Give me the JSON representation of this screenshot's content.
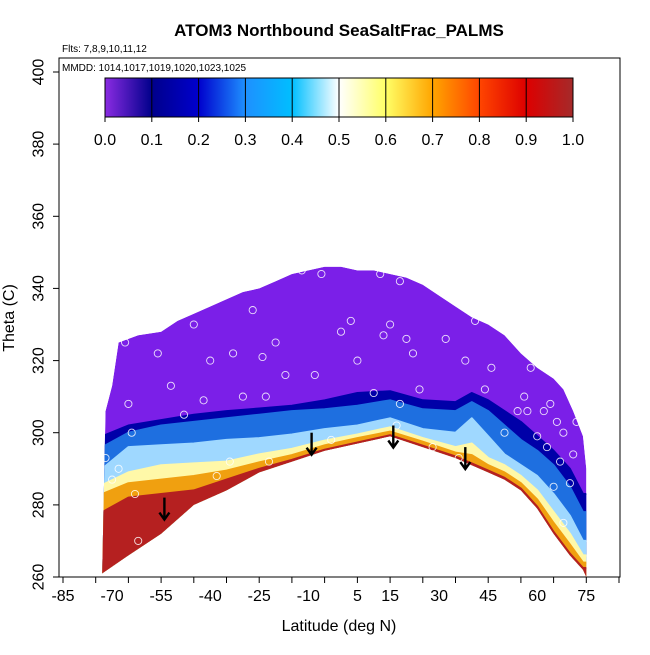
{
  "chart_data": {
    "type": "heatmap",
    "title": "ATOM3 Northbound SeaSaltFrac_PALMS",
    "subtitle_flights": "Flts: 7,8,9,10,11,12",
    "subtitle_dates": "MMDD: 1014,1017,1019,1020,1023,1025",
    "xlabel": "Latitude (deg N)",
    "ylabel": "Theta (C)",
    "xlim": [
      -85,
      85
    ],
    "ylim": [
      260,
      400
    ],
    "xticks": [
      -85,
      -70,
      -55,
      -40,
      -25,
      -10,
      5,
      15,
      30,
      45,
      60,
      75
    ],
    "yticks": [
      260,
      280,
      300,
      320,
      340,
      360,
      380,
      400
    ],
    "colorbar": {
      "range": [
        0.0,
        1.0
      ],
      "ticks": [
        "0.0",
        "0.1",
        "0.2",
        "0.3",
        "0.4",
        "0.5",
        "0.6",
        "0.7",
        "0.8",
        "0.9",
        "1.0"
      ],
      "colors": [
        "#8a2be2",
        "#00008b",
        "#0000cd",
        "#1e90ff",
        "#00bfff",
        "#ffffff",
        "#ffff66",
        "#ffa500",
        "#ff4500",
        "#dd0000",
        "#a52a2a"
      ]
    },
    "upper_boundary": [
      [
        -72,
        306
      ],
      [
        -70,
        313
      ],
      [
        -68,
        325
      ],
      [
        -62,
        327
      ],
      [
        -55,
        328
      ],
      [
        -50,
        331
      ],
      [
        -45,
        333
      ],
      [
        -40,
        335
      ],
      [
        -35,
        337
      ],
      [
        -30,
        339
      ],
      [
        -25,
        340
      ],
      [
        -20,
        342
      ],
      [
        -15,
        344
      ],
      [
        -10,
        345
      ],
      [
        -5,
        346
      ],
      [
        0,
        346
      ],
      [
        5,
        345
      ],
      [
        10,
        345
      ],
      [
        15,
        344
      ],
      [
        20,
        343
      ],
      [
        25,
        341
      ],
      [
        30,
        338
      ],
      [
        35,
        335
      ],
      [
        40,
        332
      ],
      [
        45,
        330
      ],
      [
        50,
        327
      ],
      [
        55,
        322
      ],
      [
        60,
        318
      ],
      [
        65,
        315
      ],
      [
        68,
        312
      ],
      [
        71,
        306
      ],
      [
        74,
        299
      ],
      [
        75,
        290
      ]
    ],
    "lower_boundary": [
      [
        -73,
        261
      ],
      [
        -65,
        266
      ],
      [
        -55,
        272
      ],
      [
        -45,
        280
      ],
      [
        -35,
        284
      ],
      [
        -25,
        289
      ],
      [
        -15,
        292
      ],
      [
        -5,
        295
      ],
      [
        5,
        297
      ],
      [
        15,
        299
      ],
      [
        25,
        296
      ],
      [
        35,
        293
      ],
      [
        40,
        291
      ],
      [
        45,
        289
      ],
      [
        50,
        287
      ],
      [
        55,
        284
      ],
      [
        60,
        279
      ],
      [
        65,
        272
      ],
      [
        70,
        266
      ],
      [
        74,
        262
      ],
      [
        75,
        260
      ]
    ],
    "bands": [
      {
        "value": 0.9,
        "color": "#b52020",
        "stops": [
          [
            -73,
            278
          ],
          [
            -65,
            282
          ],
          [
            -55,
            283
          ],
          [
            -45,
            284
          ],
          [
            -35,
            287
          ],
          [
            -25,
            290
          ],
          [
            -15,
            292.5
          ],
          [
            -5,
            295.3
          ],
          [
            5,
            297.3
          ],
          [
            15,
            299.3
          ],
          [
            25,
            296.4
          ],
          [
            35,
            293.4
          ],
          [
            40,
            291.5
          ],
          [
            45,
            289.5
          ],
          [
            50,
            287.5
          ],
          [
            55,
            284.5
          ],
          [
            60,
            279.5
          ],
          [
            65,
            272.5
          ],
          [
            70,
            266.5
          ],
          [
            74,
            262.5
          ]
        ]
      },
      {
        "value": 0.75,
        "color": "#f0a010",
        "stops": [
          [
            -73,
            283
          ],
          [
            -65,
            286
          ],
          [
            -55,
            287
          ],
          [
            -45,
            288
          ],
          [
            -35,
            289.5
          ],
          [
            -25,
            291.8
          ],
          [
            -15,
            293.8
          ],
          [
            -5,
            296.5
          ],
          [
            5,
            298.5
          ],
          [
            15,
            300.3
          ],
          [
            25,
            297.5
          ],
          [
            35,
            294.5
          ],
          [
            40,
            293.8
          ],
          [
            45,
            291
          ],
          [
            50,
            289
          ],
          [
            55,
            286
          ],
          [
            60,
            281.5
          ],
          [
            65,
            275
          ],
          [
            70,
            269
          ],
          [
            74,
            264
          ]
        ]
      },
      {
        "value": 0.6,
        "color": "#fff8a8",
        "stops": [
          [
            -73,
            285.5
          ],
          [
            -65,
            289
          ],
          [
            -55,
            291
          ],
          [
            -45,
            291.5
          ],
          [
            -35,
            292
          ],
          [
            -25,
            294
          ],
          [
            -15,
            295.5
          ],
          [
            -5,
            297.8
          ],
          [
            5,
            299.5
          ],
          [
            15,
            301.5
          ],
          [
            25,
            298.5
          ],
          [
            35,
            296
          ],
          [
            40,
            297
          ],
          [
            45,
            293
          ],
          [
            50,
            291
          ],
          [
            55,
            288
          ],
          [
            60,
            284
          ],
          [
            65,
            278
          ],
          [
            70,
            272
          ],
          [
            74,
            266
          ]
        ]
      },
      {
        "value": 0.45,
        "color": "#9fd8ff",
        "stops": [
          [
            -73,
            290
          ],
          [
            -65,
            296
          ],
          [
            -55,
            296.5
          ],
          [
            -45,
            297
          ],
          [
            -35,
            298
          ],
          [
            -25,
            298.5
          ],
          [
            -15,
            299.5
          ],
          [
            -5,
            301
          ],
          [
            5,
            302
          ],
          [
            15,
            304
          ],
          [
            25,
            301
          ],
          [
            35,
            300
          ],
          [
            40,
            304
          ],
          [
            45,
            299
          ],
          [
            50,
            294
          ],
          [
            55,
            291
          ],
          [
            60,
            288
          ],
          [
            65,
            283
          ],
          [
            70,
            277
          ],
          [
            74,
            270
          ]
        ]
      },
      {
        "value": 0.25,
        "color": "#1e6fe0",
        "stops": [
          [
            -73,
            296
          ],
          [
            -65,
            300
          ],
          [
            -55,
            302
          ],
          [
            -45,
            303
          ],
          [
            -35,
            304
          ],
          [
            -25,
            305
          ],
          [
            -15,
            306
          ],
          [
            -5,
            306.5
          ],
          [
            5,
            307.5
          ],
          [
            15,
            309
          ],
          [
            25,
            306.5
          ],
          [
            35,
            306
          ],
          [
            40,
            308.5
          ],
          [
            45,
            306
          ],
          [
            50,
            302
          ],
          [
            55,
            298
          ],
          [
            60,
            295
          ],
          [
            65,
            291
          ],
          [
            70,
            285
          ],
          [
            74,
            278
          ]
        ]
      },
      {
        "value": 0.1,
        "color": "#0000a8",
        "stops": [
          [
            -73,
            299
          ],
          [
            -65,
            302
          ],
          [
            -55,
            303.5
          ],
          [
            -45,
            305
          ],
          [
            -35,
            306
          ],
          [
            -25,
            306.7
          ],
          [
            -15,
            307.5
          ],
          [
            -5,
            309
          ],
          [
            5,
            311
          ],
          [
            15,
            311.5
          ],
          [
            25,
            309
          ],
          [
            35,
            308.5
          ],
          [
            40,
            311
          ],
          [
            45,
            309
          ],
          [
            50,
            306
          ],
          [
            55,
            303
          ],
          [
            60,
            299
          ],
          [
            65,
            295
          ],
          [
            70,
            290
          ],
          [
            74,
            283
          ]
        ]
      }
    ],
    "arrows": [
      [
        -54,
        282
      ],
      [
        -9,
        300
      ],
      [
        16,
        302
      ],
      [
        38,
        296
      ]
    ],
    "measurement_points": [
      [
        -70,
        287
      ],
      [
        -72,
        293
      ],
      [
        -68,
        290
      ],
      [
        -66,
        325
      ],
      [
        -65,
        308
      ],
      [
        -64,
        300
      ],
      [
        -63,
        283
      ],
      [
        -62,
        270
      ],
      [
        -61,
        263
      ],
      [
        -56,
        322
      ],
      [
        -52,
        313
      ],
      [
        -48,
        305
      ],
      [
        -45,
        330
      ],
      [
        -42,
        309
      ],
      [
        -40,
        320
      ],
      [
        -38,
        288
      ],
      [
        -34,
        292
      ],
      [
        -33,
        322
      ],
      [
        -30,
        310
      ],
      [
        -27,
        334
      ],
      [
        -24,
        321
      ],
      [
        -23,
        310
      ],
      [
        -22,
        292
      ],
      [
        -20,
        325
      ],
      [
        -17,
        316
      ],
      [
        -12,
        345
      ],
      [
        -8,
        316
      ],
      [
        -6,
        344
      ],
      [
        -3,
        298
      ],
      [
        0,
        328
      ],
      [
        3,
        331
      ],
      [
        5,
        320
      ],
      [
        10,
        311
      ],
      [
        12,
        344
      ],
      [
        13,
        327
      ],
      [
        15,
        330
      ],
      [
        17,
        302
      ],
      [
        18,
        308
      ],
      [
        18,
        342
      ],
      [
        20,
        326
      ],
      [
        22,
        322
      ],
      [
        24,
        312
      ],
      [
        28,
        296
      ],
      [
        32,
        326
      ],
      [
        36,
        293
      ],
      [
        38,
        320
      ],
      [
        41,
        331
      ],
      [
        44,
        312
      ],
      [
        46,
        318
      ],
      [
        50,
        300
      ],
      [
        54,
        306
      ],
      [
        56,
        310
      ],
      [
        57,
        306
      ],
      [
        58,
        318
      ],
      [
        60,
        299
      ],
      [
        62,
        306
      ],
      [
        63,
        296
      ],
      [
        64,
        308
      ],
      [
        65,
        285
      ],
      [
        66,
        303
      ],
      [
        67,
        292
      ],
      [
        68,
        300
      ],
      [
        68,
        275
      ],
      [
        70,
        286
      ],
      [
        71,
        294
      ],
      [
        72,
        303
      ]
    ]
  }
}
